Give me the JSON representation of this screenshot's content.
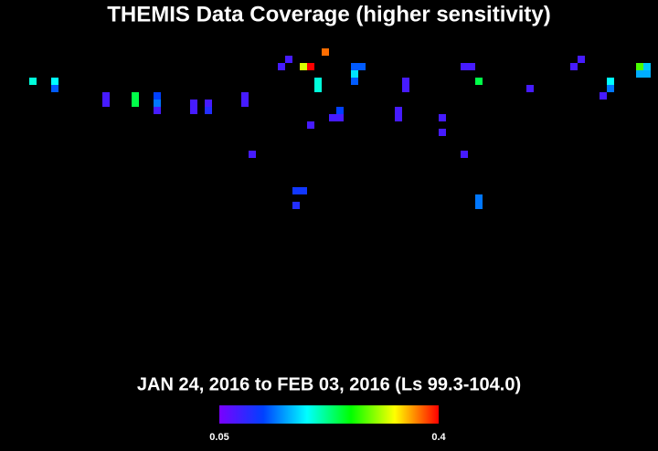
{
  "chart_data": {
    "type": "coverage",
    "title": "THEMIS Data Coverage (higher sensitivity)",
    "subtitle": "JAN 24, 2016 to FEB 03, 2016 (Ls 99.3-104.0)",
    "xlim": [
      0,
      86
    ],
    "ylim": [
      0,
      40
    ],
    "x": [
      40,
      35,
      75,
      34,
      37,
      38,
      44,
      45,
      59,
      60,
      74,
      83,
      84,
      44,
      83,
      84,
      0,
      3,
      39,
      44,
      51,
      61,
      79,
      3,
      39,
      51,
      68,
      79,
      10,
      14,
      17,
      29,
      78,
      10,
      14,
      17,
      22,
      24,
      29,
      17,
      22,
      24,
      42,
      50,
      41,
      42,
      50,
      56,
      38,
      56,
      30,
      59,
      36,
      37,
      61,
      36,
      61
    ],
    "y": [
      0,
      1,
      1,
      2,
      2,
      2,
      2,
      2,
      2,
      2,
      2,
      2,
      2,
      3,
      3,
      3,
      4,
      4,
      4,
      4,
      4,
      4,
      4,
      5,
      5,
      5,
      5,
      5,
      6,
      6,
      6,
      6,
      6,
      7,
      7,
      7,
      7,
      7,
      7,
      8,
      8,
      8,
      8,
      8,
      9,
      9,
      9,
      9,
      10,
      11,
      14,
      14,
      19,
      19,
      20,
      21,
      21
    ],
    "values": [
      0.37,
      0.08,
      0.08,
      0.08,
      0.32,
      0.4,
      0.13,
      0.13,
      0.08,
      0.08,
      0.08,
      0.28,
      0.17,
      0.18,
      0.16,
      0.16,
      0.2,
      0.19,
      0.2,
      0.13,
      0.08,
      0.24,
      0.19,
      0.13,
      0.2,
      0.08,
      0.08,
      0.14,
      0.08,
      0.24,
      0.12,
      0.08,
      0.08,
      0.08,
      0.24,
      0.14,
      0.08,
      0.08,
      0.08,
      0.08,
      0.08,
      0.1,
      0.12,
      0.08,
      0.08,
      0.08,
      0.08,
      0.08,
      0.08,
      0.08,
      0.08,
      0.08,
      0.11,
      0.11,
      0.14,
      0.1,
      0.14
    ],
    "clim": [
      0.05,
      0.4
    ],
    "cticks": [
      0.05,
      0.4
    ],
    "colormap": [
      "#7a00ff",
      "#0040ff",
      "#00ffff",
      "#00ff00",
      "#ffff00",
      "#ff0000"
    ]
  }
}
